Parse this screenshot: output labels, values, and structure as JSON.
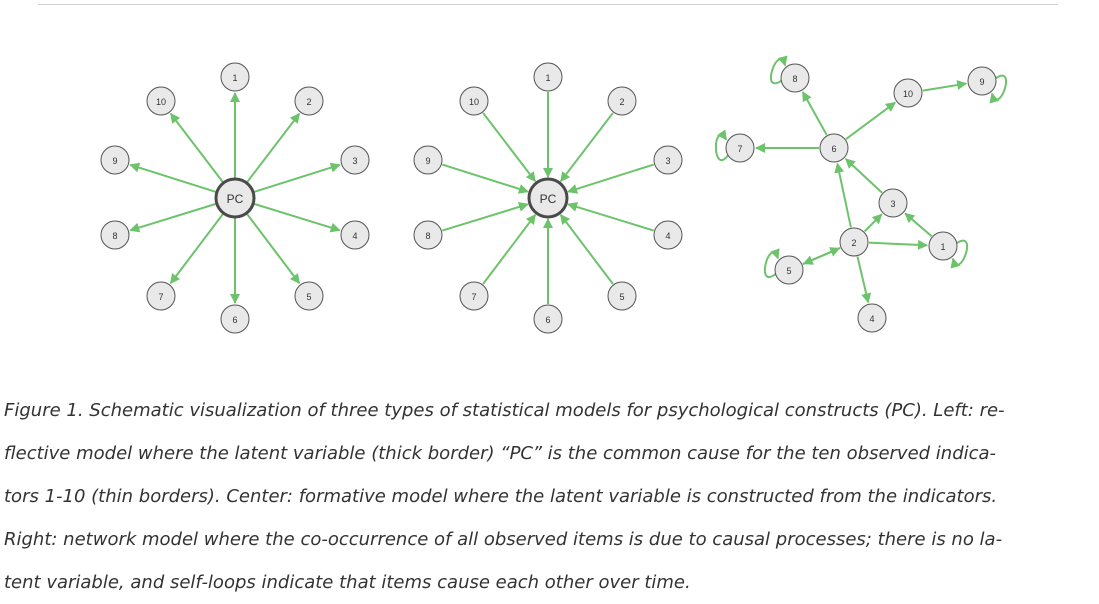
{
  "panels": [
    {
      "name": "reflective",
      "latent": {
        "label": "PC"
      },
      "indicators": [
        "1",
        "2",
        "3",
        "4",
        "5",
        "6",
        "7",
        "8",
        "9",
        "10"
      ]
    },
    {
      "name": "formative",
      "latent": {
        "label": "PC"
      },
      "indicators": [
        "1",
        "2",
        "3",
        "4",
        "5",
        "6",
        "7",
        "8",
        "9",
        "10"
      ]
    },
    {
      "name": "network",
      "nodes": [
        "8",
        "10",
        "9",
        "7",
        "6",
        "3",
        "2",
        "1",
        "5",
        "4"
      ],
      "edges": [
        [
          "6",
          "8"
        ],
        [
          "6",
          "7"
        ],
        [
          "6",
          "10"
        ],
        [
          "10",
          "9"
        ],
        [
          "2",
          "6"
        ],
        [
          "3",
          "6"
        ],
        [
          "2",
          "3"
        ],
        [
          "1",
          "3"
        ],
        [
          "2",
          "1"
        ],
        [
          "2",
          "5"
        ],
        [
          "5",
          "2"
        ],
        [
          "2",
          "4"
        ]
      ],
      "self_loops": [
        "8",
        "9",
        "7",
        "1",
        "5"
      ]
    }
  ],
  "caption": {
    "lines": [
      "Figure 1. Schematic visualization of three types of statistical models for psychological constructs (PC). Left: re-",
      "flective model where the latent variable (thick border) “PC” is the common cause for the ten observed indica-",
      "tors 1-10 (thin borders). Center: formative model where the latent variable is constructed from the indicators.",
      "Right: network model where the co-occurrence of all observed items is due to causal processes; there is no la-",
      "tent variable, and self-loops indicate that items cause each other over time."
    ]
  },
  "colors": {
    "edge": "#6cc36b",
    "node_fill": "#e9e9e9",
    "node_stroke": "#555555"
  }
}
